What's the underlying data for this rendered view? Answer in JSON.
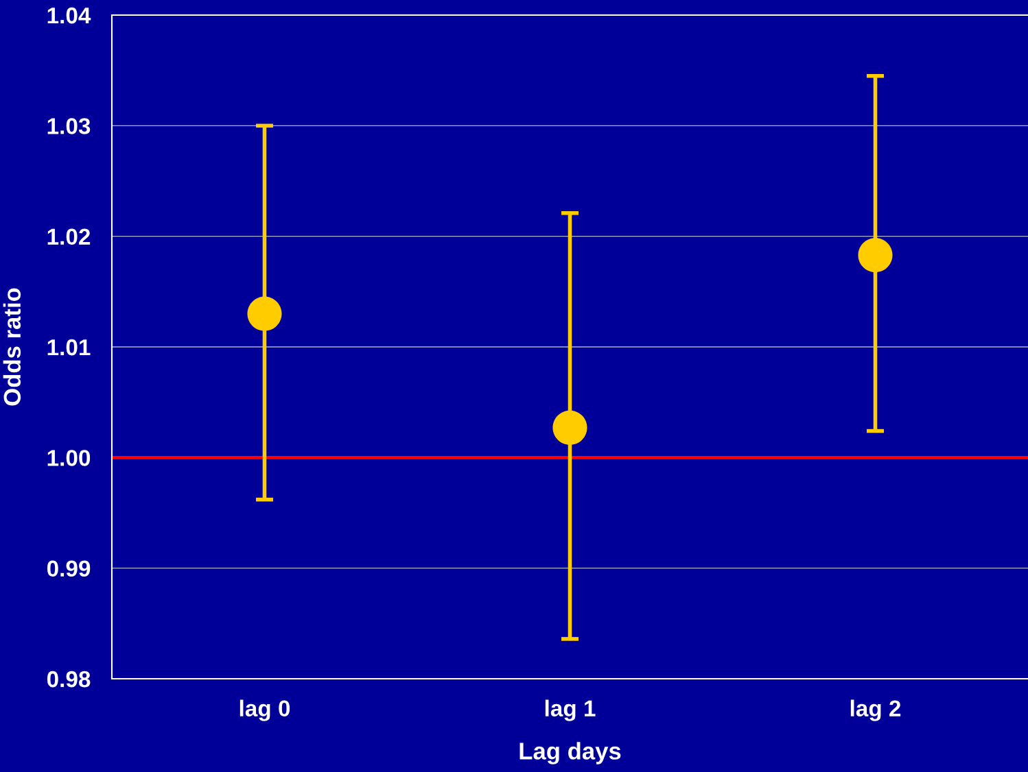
{
  "chart_data": {
    "type": "scatter",
    "xlabel": "Lag days",
    "ylabel": "Odds ratio",
    "categories": [
      "lag 0",
      "lag 1",
      "lag 2"
    ],
    "series": [
      {
        "color": "#ffcc00",
        "values": [
          1.013,
          1.0027,
          1.0183
        ],
        "errors": [
          [
            0.9962,
            1.03
          ],
          [
            0.9836,
            1.0221
          ],
          [
            1.0024,
            1.0345
          ]
        ]
      }
    ],
    "marker": "circle",
    "ylim": [
      0.98,
      1.04
    ],
    "yticks": [
      {
        "value": 0.98,
        "label": "0.98"
      },
      {
        "value": 0.99,
        "label": "0.99"
      },
      {
        "value": 1.0,
        "label": "1.00"
      },
      {
        "value": 1.01,
        "label": "1.01"
      },
      {
        "value": 1.02,
        "label": "1.02"
      },
      {
        "value": 1.03,
        "label": "1.03"
      },
      {
        "value": 1.04,
        "label": "1.04"
      }
    ],
    "grid": "y",
    "ref_lines": [
      {
        "axis": "y",
        "value": 1.0,
        "color": "#ff0000"
      }
    ]
  }
}
